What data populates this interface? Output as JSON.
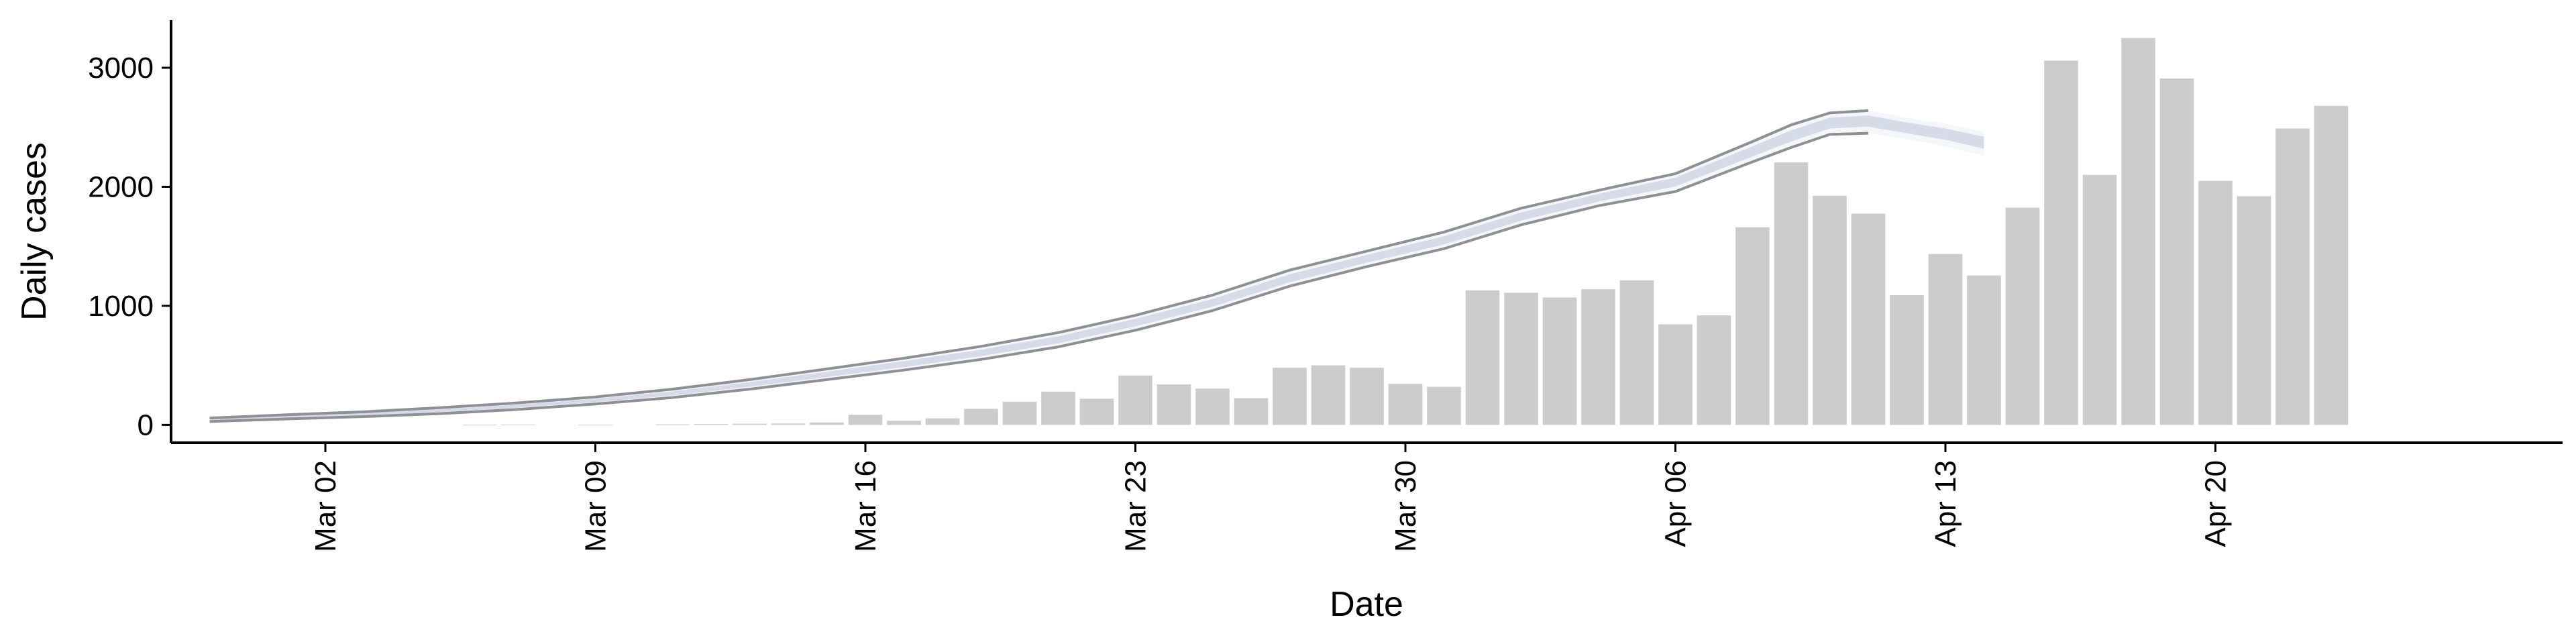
{
  "chart_data": {
    "type": "bar",
    "xlabel": "Date",
    "ylabel": "Daily cases",
    "grid": false,
    "x_axis": {
      "type": "date",
      "range": [
        "2020-02-27",
        "2020-04-29"
      ],
      "ticks": [
        "2020-03-02",
        "2020-03-09",
        "2020-03-16",
        "2020-03-23",
        "2020-03-30",
        "2020-04-06",
        "2020-04-13",
        "2020-04-20"
      ],
      "tick_labels": [
        "Mar 02",
        "Mar 09",
        "Mar 16",
        "Mar 23",
        "Mar 30",
        "Apr 06",
        "Apr 13",
        "Apr 20"
      ]
    },
    "y_axis": {
      "range": [
        -150,
        3400
      ],
      "ticks": [
        0,
        1000,
        2000,
        3000
      ],
      "tick_labels": [
        "0",
        "1000",
        "2000",
        "3000"
      ]
    },
    "colors": {
      "bars": "#cccccc",
      "band_outer": "#eceef4",
      "band_inner": "#d3d8e6",
      "band_edge": "#8f8f96"
    },
    "series": [
      {
        "kind": "bar",
        "x": [
          "2020-03-01",
          "2020-03-02",
          "2020-03-03",
          "2020-03-04",
          "2020-03-05",
          "2020-03-06",
          "2020-03-07",
          "2020-03-08",
          "2020-03-09",
          "2020-03-10",
          "2020-03-11",
          "2020-03-12",
          "2020-03-13",
          "2020-03-14",
          "2020-03-15",
          "2020-03-16",
          "2020-03-17",
          "2020-03-18",
          "2020-03-19",
          "2020-03-20",
          "2020-03-21",
          "2020-03-22",
          "2020-03-23",
          "2020-03-24",
          "2020-03-25",
          "2020-03-26",
          "2020-03-27",
          "2020-03-28",
          "2020-03-29",
          "2020-03-30",
          "2020-03-31",
          "2020-04-01",
          "2020-04-02",
          "2020-04-03",
          "2020-04-04",
          "2020-04-05",
          "2020-04-06",
          "2020-04-07",
          "2020-04-08",
          "2020-04-09",
          "2020-04-10",
          "2020-04-11",
          "2020-04-12",
          "2020-04-13",
          "2020-04-14",
          "2020-04-15",
          "2020-04-16",
          "2020-04-17",
          "2020-04-18",
          "2020-04-19",
          "2020-04-20",
          "2020-04-21",
          "2020-04-22",
          "2020-04-23",
          "2020-04-24"
        ],
        "values": [
          0,
          0,
          0,
          0,
          0,
          2,
          3,
          0,
          2,
          0,
          5,
          8,
          10,
          12,
          20,
          85,
          35,
          55,
          135,
          195,
          280,
          220,
          415,
          340,
          305,
          225,
          480,
          500,
          480,
          345,
          320,
          1130,
          1110,
          1070,
          1140,
          1215,
          845,
          920,
          1660,
          2205,
          1925,
          1775,
          1090,
          1435,
          1255,
          1825,
          3060,
          2100,
          3250,
          2910,
          2050,
          1920,
          2490,
          2680,
          0
        ]
      },
      {
        "kind": "band",
        "x": [
          "2020-02-28",
          "2020-03-01",
          "2020-03-03",
          "2020-03-05",
          "2020-03-07",
          "2020-03-09",
          "2020-03-11",
          "2020-03-13",
          "2020-03-15",
          "2020-03-17",
          "2020-03-19",
          "2020-03-21",
          "2020-03-23",
          "2020-03-25",
          "2020-03-27",
          "2020-03-29",
          "2020-03-31",
          "2020-04-02",
          "2020-04-04",
          "2020-04-06",
          "2020-04-08",
          "2020-04-09",
          "2020-04-10",
          "2020-04-11",
          "2020-04-12",
          "2020-04-13",
          "2020-04-14"
        ],
        "upper": [
          58,
          85,
          110,
          145,
          185,
          235,
          300,
          380,
          470,
          560,
          660,
          775,
          920,
          1090,
          1300,
          1460,
          1620,
          1820,
          1970,
          2110,
          2380,
          2520,
          2620,
          2640,
          2580,
          2530,
          2460
        ],
        "mid": [
          45,
          68,
          90,
          120,
          158,
          205,
          265,
          340,
          425,
          510,
          605,
          715,
          860,
          1025,
          1230,
          1395,
          1550,
          1750,
          1910,
          2045,
          2300,
          2430,
          2540,
          2560,
          2500,
          2450,
          2380
        ],
        "lower": [
          28,
          50,
          70,
          95,
          130,
          175,
          230,
          300,
          380,
          460,
          550,
          655,
          795,
          960,
          1165,
          1330,
          1480,
          1680,
          1840,
          1960,
          2210,
          2330,
          2440,
          2450,
          2400,
          2340,
          2260
        ]
      }
    ]
  }
}
